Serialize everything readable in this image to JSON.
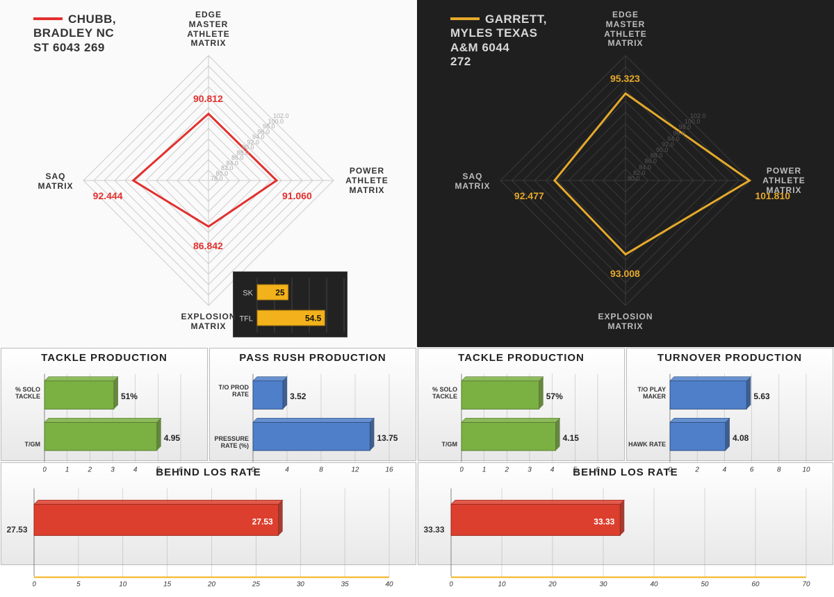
{
  "left": {
    "player": {
      "line1": "Chubb,",
      "line2": "Bradley NC",
      "line3": "St 6043 269",
      "color": "#e2302e"
    },
    "radar": {
      "type": "radar",
      "axes": [
        "EDGE\nMaster\nAthlete\nMatrix",
        "Power\nAthlete\nMatrix",
        "Explosion\nMatrix",
        "SAQ\nMatrix"
      ],
      "values": [
        90.812,
        91.06,
        86.842,
        92.444
      ],
      "value_labels": [
        "90.812",
        "91.060",
        "86.842",
        "92.444"
      ],
      "min": 78,
      "max": 102,
      "tick_step": 2,
      "grid_color": "#cccccc",
      "line_color": "#e2302e",
      "line_width": 3,
      "background": "#fafafa",
      "tick_color": "#aaaaaa",
      "axis_label_color": "#333333"
    },
    "mini": {
      "type": "bar",
      "orientation": "horizontal",
      "labels": [
        "SK",
        "TFL"
      ],
      "values": [
        25,
        54.5
      ],
      "value_labels": [
        "25",
        "54.5"
      ],
      "xmax": 70,
      "bar_color": "#f3b21b",
      "background": "#222222",
      "grid_color": "#444444",
      "label_color": "#d0d0d0",
      "value_text_color": "#111111"
    },
    "tackle": {
      "title": "Tackle Production",
      "type": "bar",
      "orientation": "horizontal",
      "labels": [
        "% SOLO TACKLE",
        "T/GM"
      ],
      "values": [
        0.51,
        4.95
      ],
      "value_labels": [
        "51%",
        "4.95"
      ],
      "xmin": 0,
      "xmax": 6,
      "xtick_step": 1,
      "bar_color": "#7bb043",
      "bar_edge": "#567a2f",
      "grid_color": "#999999"
    },
    "passrush": {
      "title": "Pass Rush Production",
      "type": "bar",
      "orientation": "horizontal",
      "labels": [
        "T/O PROD RATE",
        "PRESSURE RATE (%)"
      ],
      "values": [
        3.52,
        13.75
      ],
      "value_labels": [
        "3.52",
        "13.75"
      ],
      "xmin": 0,
      "xmax": 16,
      "xtick_step": 4,
      "bar_color": "#4f7fc8",
      "bar_edge": "#2e4f82",
      "grid_color": "#999999"
    },
    "los": {
      "title": "Behind LOS rate",
      "type": "bar",
      "orientation": "horizontal",
      "left_value": "27.53",
      "value": 27.53,
      "value_label": "27.53",
      "xmin": 0,
      "xmax": 40,
      "xtick_step": 5,
      "bar_color": "#dc3f2e",
      "bar_edge": "#9a281c",
      "grid_color": "#999999",
      "baseline_color": "#f3b21b"
    }
  },
  "right": {
    "player": {
      "line1": "Garrett,",
      "line2": "Myles Texas",
      "line3": "A&M 6044",
      "line4": "272",
      "color": "#e5a92b"
    },
    "radar": {
      "type": "radar",
      "axes": [
        "EDGE\nMaster\nAthlete\nMatrix",
        "Power\nAthlete\nMatrix",
        "Explosion\nMatrix",
        "SAQ\nMatrix"
      ],
      "values": [
        95.323,
        101.81,
        93.008,
        92.477
      ],
      "value_labels": [
        "95.323",
        "101.810",
        "93.008",
        "92.477"
      ],
      "min": 80,
      "max": 102,
      "tick_step": 2,
      "grid_color": "#3a3a3a",
      "line_color": "#e5a92b",
      "line_width": 3,
      "background": "#1f1f1f",
      "tick_color": "#555555",
      "axis_label_color": "#bdbdbd"
    },
    "tackle": {
      "title": "Tackle Production",
      "type": "bar",
      "orientation": "horizontal",
      "labels": [
        "% SOLO TACKLE",
        "T/GM"
      ],
      "values": [
        0.57,
        4.15
      ],
      "value_labels": [
        "57%",
        "4.15"
      ],
      "xmin": 0,
      "xmax": 6,
      "xtick_step": 1,
      "bar_color": "#7bb043",
      "bar_edge": "#567a2f",
      "grid_color": "#999999"
    },
    "turnover": {
      "title": "Turnover Production",
      "type": "bar",
      "orientation": "horizontal",
      "labels": [
        "T/O PLAY MAKER",
        "HAWK RATE"
      ],
      "values": [
        5.63,
        4.08
      ],
      "value_labels": [
        "5.63",
        "4.08"
      ],
      "xmin": 0,
      "xmax": 10,
      "xtick_step": 2,
      "bar_color": "#4f7fc8",
      "bar_edge": "#2e4f82",
      "grid_color": "#999999"
    },
    "los": {
      "title": "Behind LOS rate",
      "type": "bar",
      "orientation": "horizontal",
      "left_value": "33.33",
      "value": 33.33,
      "value_label": "33.33",
      "xmin": 0,
      "xmax": 70,
      "xtick_step": 10,
      "bar_color": "#dc3f2e",
      "bar_edge": "#9a281c",
      "grid_color": "#999999",
      "baseline_color": "#f3b21b"
    }
  }
}
